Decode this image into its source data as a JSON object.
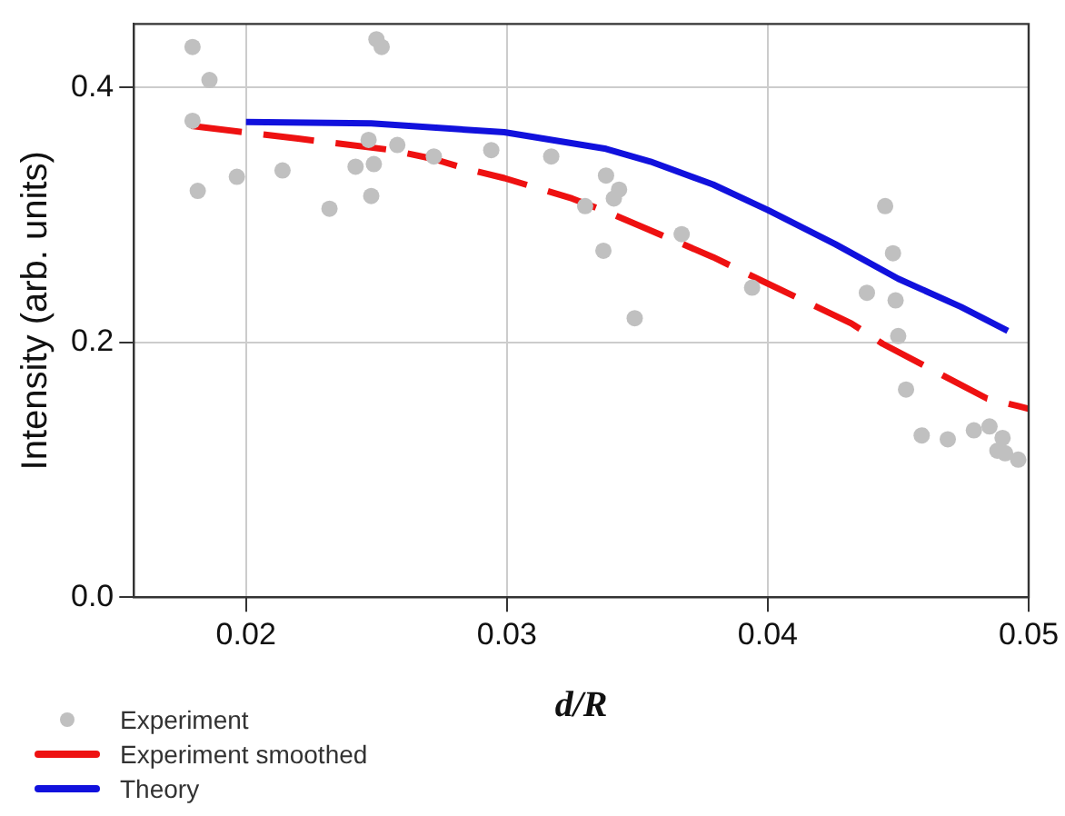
{
  "chart_data": {
    "type": "scatter",
    "xlabel": "d/R",
    "ylabel": "Intensity (arb. units)",
    "xlim": [
      0.0157,
      0.05
    ],
    "xticks": [
      {
        "value": 0.02,
        "label": "0.02"
      },
      {
        "value": 0.03,
        "label": "0.03"
      },
      {
        "value": 0.04,
        "label": "0.04"
      },
      {
        "value": 0.05,
        "label": "0.05"
      }
    ],
    "ylim": [
      0,
      0.45
    ],
    "yticks": [
      {
        "value": 0,
        "label": "0.0"
      },
      {
        "value": 0.2,
        "label": "0.2"
      },
      {
        "value": 0.4,
        "label": "0.4"
      }
    ],
    "grid": true,
    "legend": "bottom left",
    "series": [
      {
        "name": "Experiment",
        "type": "scatter",
        "marker": "circle",
        "color": "#c0c0c0",
        "x": [
          0.01795,
          0.0186,
          0.01795,
          0.01815,
          0.01965,
          0.0214,
          0.0232,
          0.0242,
          0.0247,
          0.0249,
          0.0248,
          0.025,
          0.0252,
          0.0258,
          0.0272,
          0.0294,
          0.0317,
          0.033,
          0.0337,
          0.0338,
          0.0343,
          0.0341,
          0.0349,
          0.0367,
          0.0394,
          0.0445,
          0.0448,
          0.0438,
          0.0449,
          0.045,
          0.0453,
          0.0459,
          0.0469,
          0.0479,
          0.0485,
          0.049,
          0.0488,
          0.0491,
          0.0496
        ],
        "values": [
          0.432,
          0.406,
          0.374,
          0.319,
          0.33,
          0.335,
          0.305,
          0.338,
          0.359,
          0.34,
          0.315,
          0.438,
          0.432,
          0.355,
          0.346,
          0.351,
          0.346,
          0.307,
          0.272,
          0.331,
          0.32,
          0.313,
          0.219,
          0.285,
          0.243,
          0.307,
          0.27,
          0.239,
          0.233,
          0.205,
          0.163,
          0.127,
          0.124,
          0.131,
          0.134,
          0.125,
          0.115,
          0.113,
          0.108
        ]
      },
      {
        "name": "Experiment smoothed",
        "type": "line",
        "line_style": "dashed",
        "marker": "none",
        "color": "#ee1111",
        "x": [
          0.0179,
          0.022,
          0.0232,
          0.0256,
          0.0272,
          0.0285,
          0.0299,
          0.0325,
          0.0339,
          0.0379,
          0.0392,
          0.0432,
          0.0444,
          0.0484,
          0.0496,
          0.05
        ],
        "values": [
          0.37,
          0.36,
          0.357,
          0.351,
          0.344,
          0.336,
          0.329,
          0.313,
          0.302,
          0.267,
          0.254,
          0.215,
          0.199,
          0.156,
          0.15,
          0.148
        ]
      },
      {
        "name": "Theory",
        "type": "line",
        "line_style": "solid",
        "marker": "none",
        "color": "#1111dd",
        "x": [
          0.02,
          0.0248,
          0.0299,
          0.0338,
          0.0355,
          0.0379,
          0.04,
          0.0426,
          0.045,
          0.0474,
          0.0492
        ],
        "values": [
          0.373,
          0.372,
          0.365,
          0.352,
          0.342,
          0.324,
          0.304,
          0.277,
          0.25,
          0.228,
          0.209
        ]
      }
    ]
  }
}
